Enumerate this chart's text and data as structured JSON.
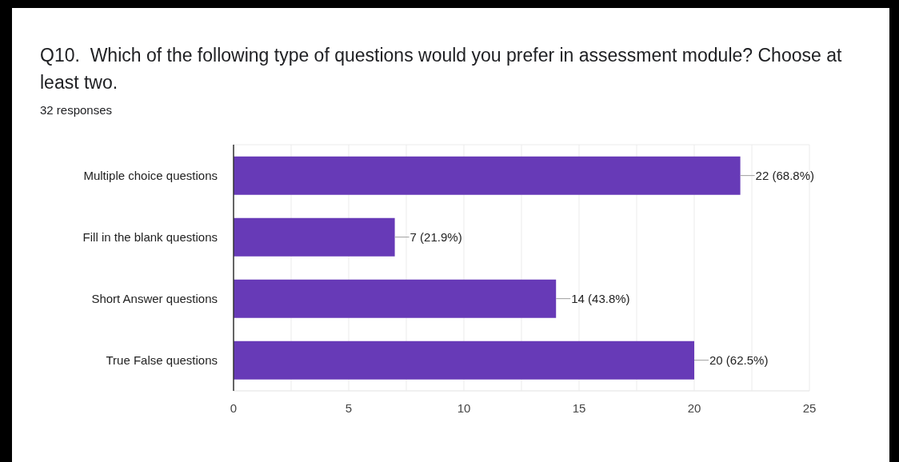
{
  "chart_data": {
    "type": "bar",
    "orientation": "horizontal",
    "title": "Q10.  Which of the following type of questions would you prefer in assessment module? Choose at least two.",
    "subtitle": "32 responses",
    "categories": [
      "Multiple choice questions",
      "Fill in the blank questions",
      "Short Answer questions",
      "True False questions"
    ],
    "values": [
      22,
      7,
      14,
      20
    ],
    "color": "#673ab7",
    "value_labels": [
      "22 (68.8%)",
      "7 (21.9%)",
      "14 (43.8%)",
      "20 (62.5%)"
    ],
    "xlim": [
      0,
      25
    ],
    "xticks": [
      0,
      {
        "value": 2.5,
        "label": null
      },
      5,
      {
        "value": 7.5,
        "label": null
      },
      10,
      {
        "value": 12.5,
        "label": null
      },
      15,
      {
        "value": 17.5,
        "label": null
      },
      20,
      {
        "value": 22.5,
        "label": null
      },
      25
    ],
    "grid": "x"
  }
}
